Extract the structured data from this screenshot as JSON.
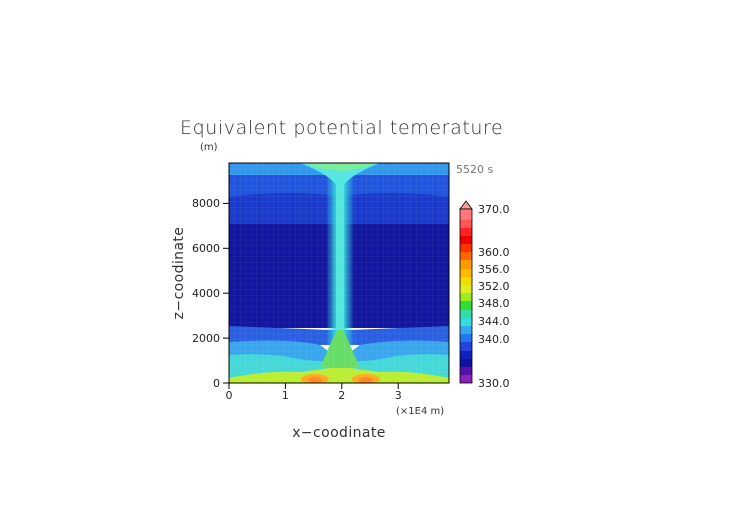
{
  "chart_data": {
    "type": "heatmap",
    "title": "Equivalent potential temerature",
    "time_label": "5520 s",
    "xlabel": "x−coodinate",
    "ylabel": "z−coodinate",
    "x_unit": "(×1E4 m)",
    "y_unit": "(m)",
    "xlim": [
      0,
      3.9
    ],
    "ylim": [
      0,
      9800
    ],
    "x_ticks": [
      "0",
      "1",
      "2",
      "3"
    ],
    "y_ticks": [
      "0",
      "2000",
      "4000",
      "6000",
      "8000"
    ],
    "grid": true,
    "colorbar": {
      "labels": [
        "330.0",
        "340.0",
        "344.0",
        "348.0",
        "352.0",
        "356.0",
        "360.0",
        "370.0"
      ],
      "range": [
        330,
        370
      ]
    },
    "field_description": [
      {
        "z_range": [
          0,
          200
        ],
        "value": 352
      },
      {
        "z_range": [
          200,
          1000
        ],
        "value": 344
      },
      {
        "z_range": [
          1000,
          2400
        ],
        "value": 343
      },
      {
        "z_range": [
          2400,
          7200
        ],
        "value": 340
      },
      {
        "z_range": [
          7200,
          9000
        ],
        "value": 341
      },
      {
        "z_range": [
          9000,
          9800
        ],
        "value": 343
      }
    ],
    "plume": {
      "x_center": 2.0,
      "value": 344,
      "surface_max": 358
    }
  }
}
